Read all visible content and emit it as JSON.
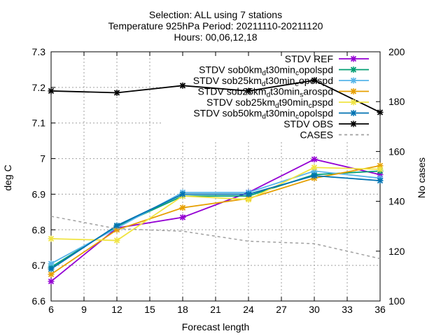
{
  "header": {
    "line1": "Selection: ALL using     7 stations",
    "line2": "Temperature 925hPa   Period: 20211110-20211120",
    "line3": "Hours: 00,06,12,18"
  },
  "chart_data": {
    "type": "line",
    "title": "Selection: ALL using     7 stations",
    "xlabel": "Forecast length",
    "ylabel": "deg C",
    "y2label": "No cases",
    "xlim": [
      6,
      36
    ],
    "ylim": [
      6.6,
      7.3
    ],
    "y2lim": [
      100,
      200
    ],
    "xticks": [
      "6",
      "9",
      "12",
      "15",
      "18",
      "21",
      "24",
      "27",
      "30",
      "33",
      "36"
    ],
    "yticks": [
      "6.6",
      "6.7",
      "6.8",
      "6.9",
      "7",
      "7.1",
      "7.2",
      "7.3"
    ],
    "y2ticks": [
      "100",
      "120",
      "140",
      "160",
      "180",
      "200"
    ],
    "grid": true,
    "legend_position": "top-right",
    "x": [
      6,
      12,
      18,
      24,
      30,
      36
    ],
    "series": [
      {
        "name_base": "STDV REF",
        "sub": "",
        "post": "",
        "color": "#9400d3",
        "marker": "x",
        "dash": "",
        "axis": "y1",
        "values": [
          6.655,
          6.805,
          6.835,
          6.905,
          6.998,
          6.955
        ]
      },
      {
        "name_base": "STDV sob0km",
        "sub": "d",
        "post": "t30min",
        "sub2": "c",
        "post2": "opolspd",
        "color": "#009e73",
        "marker": "x",
        "dash": "",
        "axis": "y1",
        "values": [
          6.695,
          6.81,
          6.895,
          6.895,
          6.955,
          6.965
        ]
      },
      {
        "name_base": "STDV sob25km",
        "sub": "d",
        "post": "t30min",
        "sub2": "e",
        "post2": "opolspd",
        "color": "#56b4e9",
        "marker": "x",
        "dash": "",
        "axis": "y1",
        "values": [
          6.705,
          6.805,
          6.905,
          6.905,
          6.965,
          6.945
        ]
      },
      {
        "name_base": "STDV sob25km",
        "sub": "d",
        "post": "t30min",
        "sub2": "s",
        "post2": "arospd",
        "color": "#e69f00",
        "marker": "x",
        "dash": "",
        "axis": "y1",
        "values": [
          6.675,
          6.8,
          6.862,
          6.888,
          6.945,
          6.98
        ]
      },
      {
        "name_base": "STDV sob25km",
        "sub": "d",
        "post": "t90min",
        "sub2": "c",
        "post2": "pspd",
        "color": "#f0e442",
        "marker": "x",
        "dash": "",
        "axis": "y1",
        "values": [
          6.775,
          6.77,
          6.895,
          6.885,
          6.975,
          6.97
        ]
      },
      {
        "name_base": "STDV sob50km",
        "sub": "d",
        "post": "t30min",
        "sub2": "c",
        "post2": "opolspd",
        "color": "#0072b2",
        "marker": "x",
        "dash": "",
        "axis": "y1",
        "values": [
          6.69,
          6.812,
          6.9,
          6.9,
          6.952,
          6.938
        ]
      },
      {
        "name_base": "STDV OBS",
        "sub": "",
        "post": "",
        "color": "#000000",
        "marker": "x",
        "dash": "",
        "axis": "y1",
        "values": [
          7.19,
          7.185,
          7.205,
          7.19,
          7.22,
          7.13
        ]
      },
      {
        "name_base": "CASES",
        "sub": "",
        "post": "",
        "color": "#a0a0a0",
        "marker": "",
        "dash": "4,4",
        "axis": "y2",
        "values": [
          134,
          129,
          128,
          124,
          123,
          117
        ]
      }
    ]
  }
}
